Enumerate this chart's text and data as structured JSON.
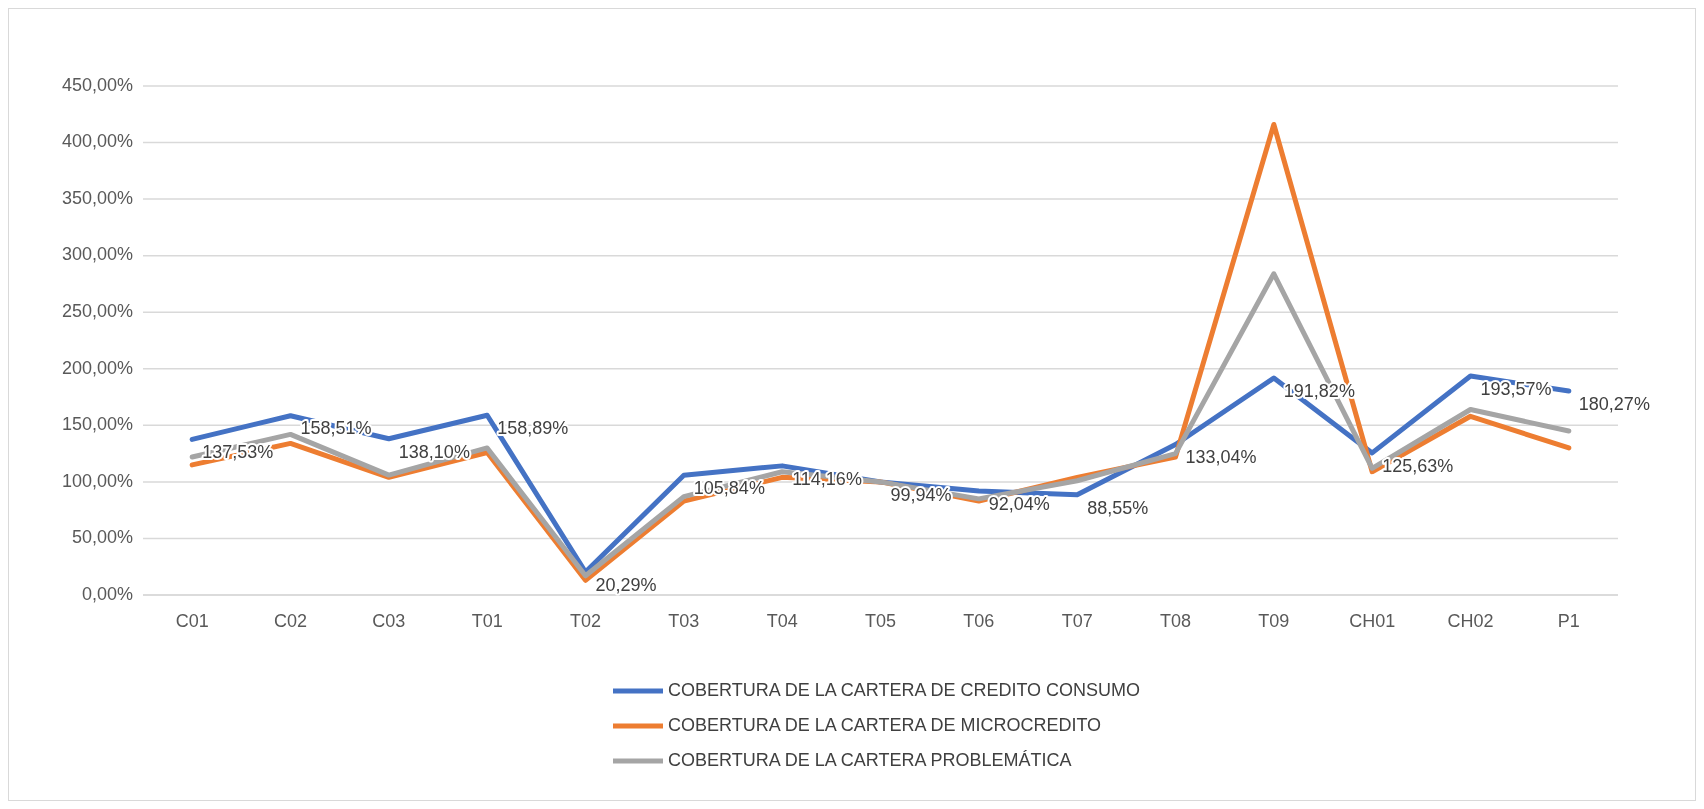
{
  "chart_data": {
    "type": "line",
    "categories": [
      "C01",
      "C02",
      "C03",
      "T01",
      "T02",
      "T03",
      "T04",
      "T05",
      "T06",
      "T07",
      "T08",
      "T09",
      "CH01",
      "CH02",
      "P1"
    ],
    "series": [
      {
        "name": "COBERTURA DE LA CARTERA DE CREDITO CONSUMO",
        "color": "#4472c4",
        "values": [
          137.53,
          158.51,
          138.1,
          158.89,
          20.29,
          105.84,
          114.16,
          99.94,
          92.04,
          88.55,
          133.04,
          191.82,
          125.63,
          193.57,
          180.27
        ],
        "value_labels": [
          "137,53%",
          "158,51%",
          "138,10%",
          "158,89%",
          "20,29%",
          "105,84%",
          "114,16%",
          "99,94%",
          "92,04%",
          "88,55%",
          "133,04%",
          "191,82%",
          "125,63%",
          "193,57%",
          "180,27%"
        ]
      },
      {
        "name": "COBERTURA DE LA CARTERA DE MICROCREDITO",
        "color": "#ed7d31",
        "values": [
          115,
          134,
          104,
          126,
          13,
          83,
          104,
          100,
          83,
          104,
          122,
          416,
          109,
          158,
          130
        ]
      },
      {
        "name": "COBERTURA DE LA CARTERA PROBLEMÁTICA",
        "color": "#a5a5a5",
        "values": [
          122,
          142,
          106,
          130,
          17,
          87,
          109,
          100,
          85,
          101,
          125,
          284,
          112,
          164,
          145
        ]
      }
    ],
    "ylim": [
      0,
      450
    ],
    "yticks": [
      {
        "value": 0,
        "label": "0,00%"
      },
      {
        "value": 50,
        "label": "50,00%"
      },
      {
        "value": 100,
        "label": "100,00%"
      },
      {
        "value": 150,
        "label": "150,00%"
      },
      {
        "value": 200,
        "label": "200,00%"
      },
      {
        "value": 250,
        "label": "250,00%"
      },
      {
        "value": 300,
        "label": "300,00%"
      },
      {
        "value": 350,
        "label": "350,00%"
      },
      {
        "value": 400,
        "label": "400,00%"
      },
      {
        "value": 450,
        "label": "450,00%"
      }
    ],
    "grid": "y",
    "legend": "bottom",
    "marker": "none",
    "line_style": "solid"
  }
}
